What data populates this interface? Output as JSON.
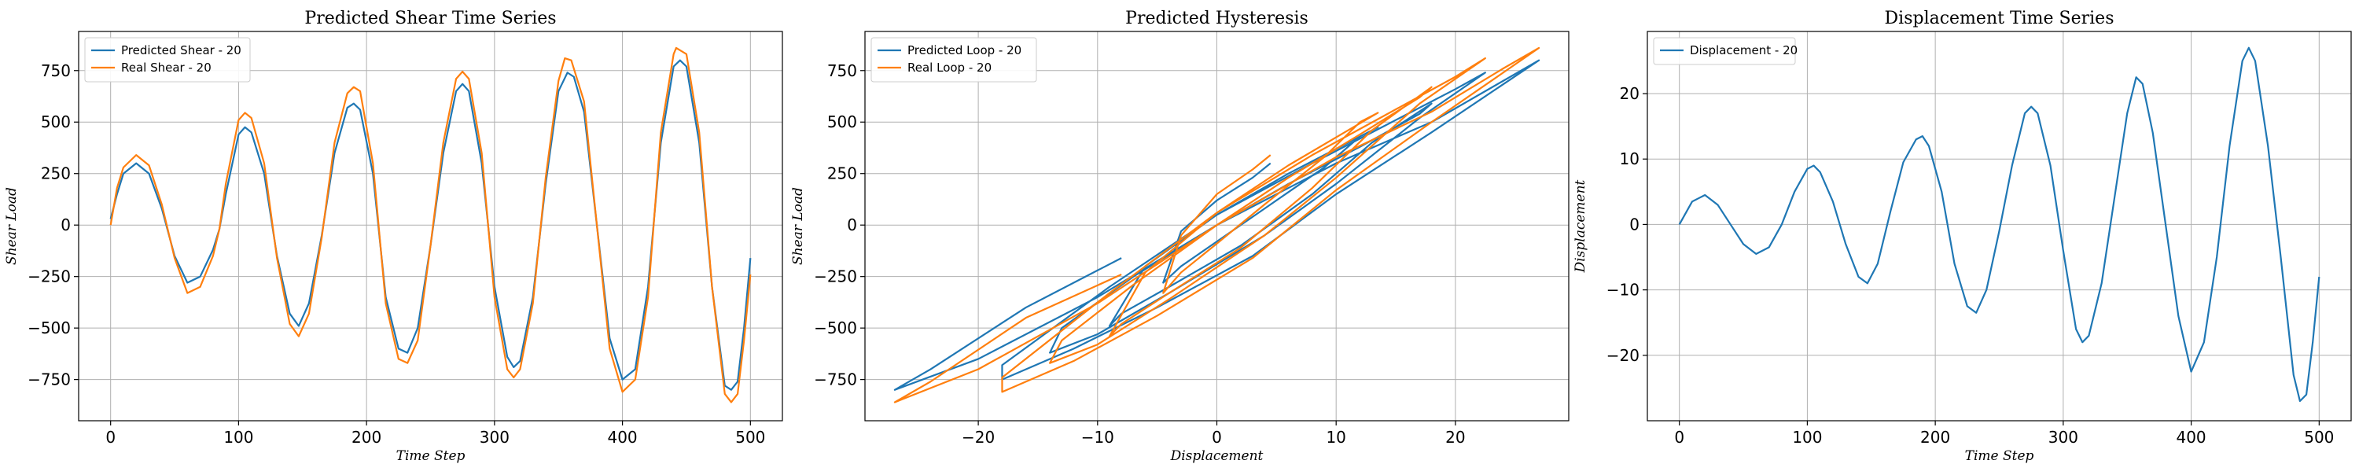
{
  "chart_data": [
    {
      "type": "line",
      "title": "Predicted Shear Time Series",
      "xlabel": "Time Step",
      "ylabel": "Shear Load",
      "xlim": [
        -25,
        525
      ],
      "ylim": [
        -950,
        940
      ],
      "xticks": [
        0,
        100,
        200,
        300,
        400,
        500
      ],
      "yticks": [
        -750,
        -500,
        -250,
        0,
        250,
        500,
        750
      ],
      "grid": true,
      "legend": "top-left",
      "series": [
        {
          "name": "Predicted Shear - 20",
          "color": "#1f77b4",
          "x": [
            0,
            5,
            10,
            20,
            30,
            40,
            50,
            60,
            70,
            80,
            85,
            90,
            100,
            105,
            110,
            120,
            130,
            140,
            147,
            155,
            165,
            175,
            185,
            190,
            195,
            205,
            215,
            225,
            232,
            240,
            250,
            260,
            270,
            275,
            280,
            290,
            300,
            310,
            315,
            320,
            330,
            340,
            350,
            357,
            362,
            370,
            380,
            390,
            400,
            410,
            420,
            430,
            440,
            445,
            450,
            460,
            470,
            480,
            485,
            490,
            495,
            500
          ],
          "y": [
            30,
            150,
            250,
            300,
            250,
            80,
            -150,
            -280,
            -250,
            -120,
            -20,
            150,
            440,
            475,
            450,
            250,
            -150,
            -430,
            -490,
            -380,
            -50,
            350,
            570,
            590,
            560,
            250,
            -350,
            -600,
            -620,
            -500,
            -100,
            350,
            650,
            685,
            650,
            300,
            -300,
            -640,
            -690,
            -660,
            -350,
            200,
            650,
            740,
            720,
            550,
            0,
            -550,
            -750,
            -700,
            -300,
            400,
            770,
            800,
            770,
            400,
            -300,
            -780,
            -800,
            -760,
            -500,
            -160
          ]
        },
        {
          "name": "Real Shear - 20",
          "color": "#ff7f0e",
          "x": [
            0,
            5,
            10,
            20,
            30,
            40,
            50,
            60,
            70,
            80,
            85,
            90,
            100,
            105,
            110,
            120,
            130,
            140,
            147,
            155,
            165,
            175,
            185,
            190,
            195,
            205,
            215,
            225,
            232,
            240,
            250,
            260,
            270,
            275,
            280,
            290,
            300,
            310,
            315,
            320,
            330,
            340,
            350,
            355,
            360,
            370,
            380,
            390,
            400,
            410,
            420,
            430,
            440,
            442,
            450,
            460,
            470,
            480,
            485,
            490,
            495,
            500
          ],
          "y": [
            0,
            180,
            280,
            340,
            290,
            100,
            -160,
            -330,
            -300,
            -150,
            -20,
            200,
            510,
            545,
            520,
            300,
            -160,
            -480,
            -540,
            -430,
            -60,
            400,
            640,
            670,
            650,
            300,
            -380,
            -650,
            -670,
            -560,
            -100,
            400,
            710,
            745,
            710,
            350,
            -350,
            -700,
            -740,
            -700,
            -380,
            230,
            700,
            810,
            800,
            600,
            0,
            -600,
            -810,
            -750,
            -350,
            450,
            830,
            860,
            830,
            450,
            -300,
            -820,
            -860,
            -820,
            -560,
            -240
          ]
        }
      ]
    },
    {
      "type": "line",
      "title": "Predicted Hysteresis",
      "xlabel": "Displacement",
      "ylabel": "Shear Load",
      "xlim": [
        -29.5,
        29.5
      ],
      "ylim": [
        -950,
        940
      ],
      "xticks": [
        -20,
        -10,
        0,
        10,
        20
      ],
      "yticks": [
        -750,
        -500,
        -250,
        0,
        250,
        500,
        750
      ],
      "grid": true,
      "legend": "top-left",
      "series": [
        {
          "name": "Predicted Loop - 20",
          "color": "#1f77b4",
          "x": [
            4.5,
            3,
            0,
            -3,
            -4.5,
            -3,
            0,
            4,
            9,
            12,
            13.5,
            11,
            6,
            0,
            -6,
            -9,
            -8,
            -4,
            2,
            8,
            13,
            18,
            17,
            12,
            6,
            0,
            -7,
            -13,
            -14,
            -10,
            -4,
            4,
            10,
            17,
            22.5,
            20,
            14,
            8,
            0,
            -9,
            -18,
            -18,
            -12,
            -5,
            3,
            10,
            18,
            27,
            24,
            18,
            10,
            0,
            -10,
            -20,
            -27,
            -24,
            -16,
            -8
          ],
          "y": [
            300,
            230,
            120,
            -30,
            -280,
            -200,
            -80,
            80,
            280,
            430,
            475,
            400,
            250,
            50,
            -200,
            -490,
            -430,
            -300,
            -100,
            150,
            400,
            590,
            540,
            380,
            200,
            0,
            -250,
            -500,
            -620,
            -530,
            -330,
            -50,
            200,
            520,
            740,
            660,
            480,
            300,
            50,
            -300,
            -680,
            -750,
            -600,
            -400,
            -150,
            150,
            450,
            800,
            700,
            500,
            300,
            0,
            -350,
            -650,
            -800,
            -700,
            -400,
            -160
          ]
        },
        {
          "name": "Real Loop - 20",
          "color": "#ff7f0e",
          "x": [
            4.5,
            3,
            0,
            -3,
            -4.5,
            -3,
            0,
            4,
            9,
            12,
            13.5,
            11,
            6,
            0,
            -6,
            -9,
            -8,
            -4,
            2,
            8,
            13,
            18,
            17,
            12,
            6,
            0,
            -7,
            -13,
            -14,
            -10,
            -4,
            4,
            10,
            17,
            22.5,
            20,
            14,
            8,
            0,
            -9,
            -18,
            -18,
            -12,
            -5,
            3,
            10,
            18,
            27,
            24,
            18,
            10,
            0,
            -10,
            -20,
            -27,
            -24,
            -16,
            -8
          ],
          "y": [
            340,
            270,
            150,
            -50,
            -330,
            -230,
            -90,
            100,
            330,
            500,
            545,
            460,
            290,
            60,
            -230,
            -540,
            -480,
            -330,
            -110,
            180,
            460,
            670,
            620,
            440,
            230,
            0,
            -290,
            -560,
            -670,
            -580,
            -360,
            -50,
            230,
            590,
            810,
            720,
            530,
            340,
            60,
            -330,
            -740,
            -810,
            -660,
            -440,
            -160,
            170,
            500,
            860,
            760,
            550,
            330,
            0,
            -380,
            -700,
            -860,
            -760,
            -450,
            -240
          ]
        }
      ]
    },
    {
      "type": "line",
      "title": "Displacement Time Series",
      "xlabel": "Time Step",
      "ylabel": "Displacement",
      "xlim": [
        -25,
        525
      ],
      "ylim": [
        -30,
        29.5
      ],
      "xticks": [
        0,
        100,
        200,
        300,
        400,
        500
      ],
      "yticks": [
        -20,
        -10,
        0,
        10,
        20
      ],
      "grid": true,
      "legend": "top-left",
      "series": [
        {
          "name": "Displacement - 20",
          "color": "#1f77b4",
          "x": [
            0,
            10,
            20,
            30,
            40,
            50,
            60,
            70,
            80,
            90,
            100,
            105,
            110,
            120,
            130,
            140,
            147,
            155,
            165,
            175,
            185,
            190,
            195,
            205,
            215,
            225,
            232,
            240,
            250,
            260,
            270,
            275,
            280,
            290,
            300,
            310,
            315,
            320,
            330,
            340,
            350,
            357,
            362,
            370,
            380,
            390,
            400,
            410,
            420,
            430,
            440,
            445,
            450,
            460,
            470,
            480,
            485,
            490,
            495,
            500
          ],
          "y": [
            0,
            3.5,
            4.5,
            3,
            0,
            -3,
            -4.5,
            -3.5,
            0,
            5,
            8.5,
            9,
            8,
            3.5,
            -3,
            -8,
            -9,
            -6,
            2,
            9.5,
            13,
            13.5,
            12,
            5,
            -6,
            -12.5,
            -13.5,
            -10,
            -1,
            9,
            17,
            18,
            17,
            9,
            -4,
            -16,
            -18,
            -17,
            -9,
            4,
            17,
            22.5,
            21.5,
            14,
            0,
            -14,
            -22.5,
            -18,
            -5,
            12,
            25,
            27,
            25,
            12,
            -5,
            -23,
            -27,
            -26,
            -18,
            -8
          ]
        }
      ]
    }
  ]
}
